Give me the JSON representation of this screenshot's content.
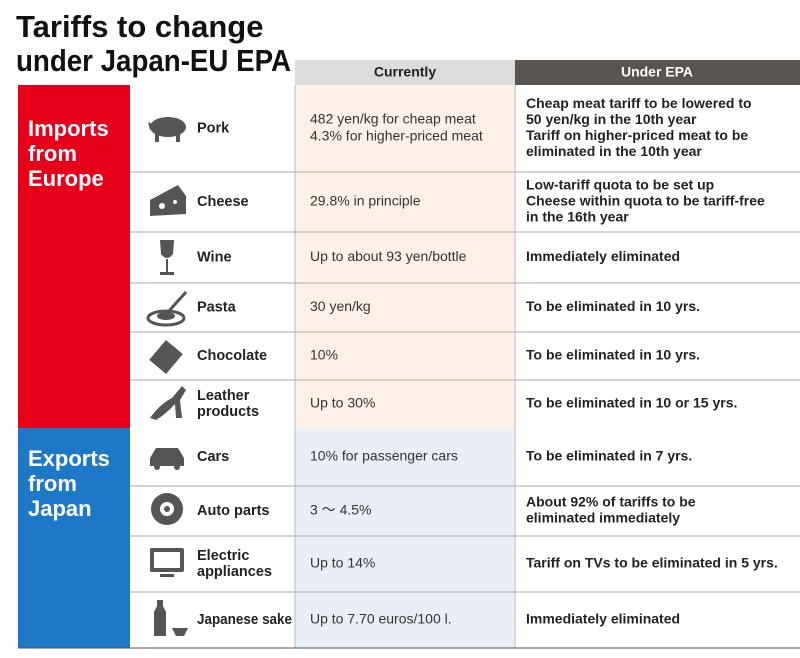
{
  "header": {
    "title_lines": [
      "Tariffs to change",
      "under Japan-EU EPA"
    ]
  },
  "columns": {
    "currently": "Currently",
    "epa": "Under EPA"
  },
  "sections": [
    {
      "label_lines": [
        "Imports",
        "from",
        "Europe"
      ],
      "rows": [
        {
          "item_lines": [
            "Pork"
          ],
          "currently_lines": [
            "482 yen/kg for cheap meat",
            "4.3% for higher-priced meat"
          ],
          "epa_lines": [
            "Cheap meat tariff to be lowered to",
            "50 yen/kg in the 10th year",
            "Tariff on higher-priced meat to be",
            "eliminated in the 10th year"
          ]
        },
        {
          "item_lines": [
            "Cheese"
          ],
          "currently_lines": [
            "29.8% in principle"
          ],
          "epa_lines": [
            "Low-tariff quota to be set up",
            "Cheese within quota to be tariff-free",
            "in the 16th year"
          ]
        },
        {
          "item_lines": [
            "Wine"
          ],
          "currently_lines": [
            "Up to about 93 yen/bottle"
          ],
          "epa_lines": [
            "Immediately eliminated"
          ]
        },
        {
          "item_lines": [
            "Pasta"
          ],
          "currently_lines": [
            "30 yen/kg"
          ],
          "epa_lines": [
            "To be eliminated in 10 yrs."
          ]
        },
        {
          "item_lines": [
            "Chocolate"
          ],
          "currently_lines": [
            "10%"
          ],
          "epa_lines": [
            "To be eliminated in 10 yrs."
          ]
        },
        {
          "item_lines": [
            "Leather",
            "products"
          ],
          "currently_lines": [
            "Up to 30%"
          ],
          "epa_lines": [
            "To be eliminated in 10 or 15 yrs."
          ]
        }
      ]
    },
    {
      "label_lines": [
        "Exports",
        "from",
        "Japan"
      ],
      "rows": [
        {
          "item_lines": [
            "Cars"
          ],
          "currently_lines": [
            "10% for passenger cars"
          ],
          "epa_lines": [
            "To be eliminated in 7 yrs."
          ]
        },
        {
          "item_lines": [
            "Auto parts"
          ],
          "currently_lines": [
            "3 ～ 4.5%"
          ],
          "epa_lines": [
            "About 92% of tariffs to be",
            "eliminated immediately"
          ]
        },
        {
          "item_lines": [
            "Electric",
            "appliances"
          ],
          "currently_lines": [
            "Up to 14%"
          ],
          "epa_lines": [
            "Tariff on TVs to be eliminated in 5 yrs."
          ]
        },
        {
          "item_lines": [
            "Japanese sake"
          ],
          "currently_lines": [
            "Up to 7.70 euros/100 l."
          ],
          "epa_lines": [
            "Immediately eliminated"
          ]
        }
      ]
    }
  ]
}
